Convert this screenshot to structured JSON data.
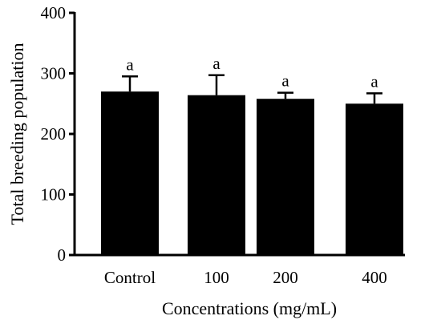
{
  "chart_data": {
    "type": "bar",
    "categories": [
      "Control",
      "100",
      "200",
      "400"
    ],
    "values": [
      270,
      264,
      258,
      250
    ],
    "error_upper": [
      25,
      33,
      10,
      17
    ],
    "significance": [
      "a",
      "a",
      "a",
      "a"
    ],
    "bar_color": "#000000",
    "xlabel": "Concentrations (mg/mL)",
    "ylabel": "Total breeding population",
    "ylim": [
      0,
      400
    ],
    "yticks": [
      "0",
      "100",
      "200",
      "300",
      "400"
    ],
    "grid": false
  }
}
